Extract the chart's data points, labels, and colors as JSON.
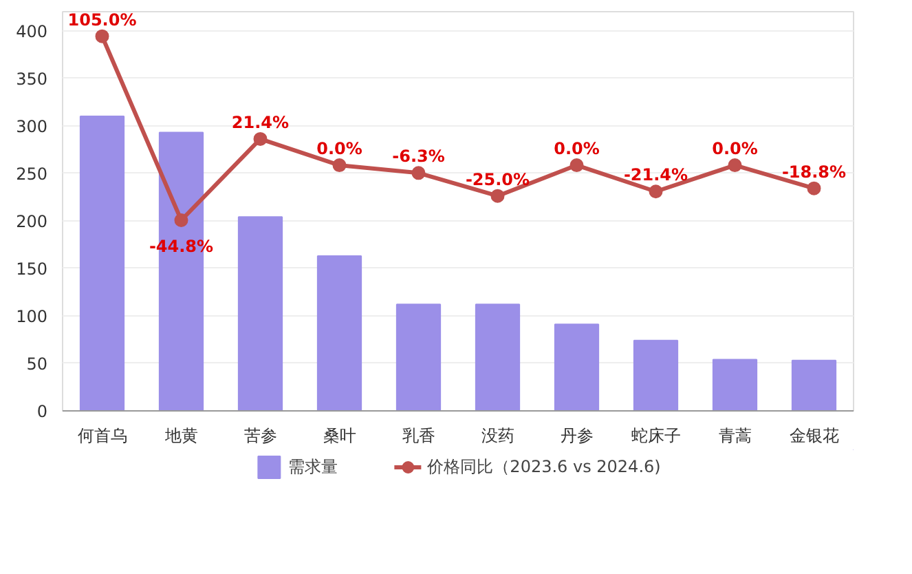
{
  "chart_data": {
    "type": "bar",
    "categories": [
      "何首乌",
      "地黄",
      "苦参",
      "桑叶",
      "乳香",
      "没药",
      "丹参",
      "蛇床子",
      "青蒿",
      "金银花"
    ],
    "series": [
      {
        "name": "需求量",
        "color": "#9b8fe8",
        "values": [
          310,
          293,
          204,
          163,
          112,
          112,
          91,
          74,
          54,
          53
        ]
      },
      {
        "name": "价格同比（2023.6 vs 2024.6)",
        "type": "line",
        "axis": "y2",
        "color": "#c0504d",
        "marker": "circle",
        "values": [
          105.0,
          -44.8,
          21.4,
          0.0,
          -6.3,
          -25.0,
          0.0,
          -21.4,
          0.0,
          -18.8
        ],
        "value_labels": [
          "105.0%",
          "-44.8%",
          "21.4%",
          "0.0%",
          "-6.3%",
          "-25.0%",
          "0.0%",
          "-21.4%",
          "0.0%",
          "-18.8%"
        ]
      }
    ],
    "ylim": [
      0,
      420
    ],
    "yticks": [
      0,
      50,
      100,
      150,
      200,
      250,
      300,
      350,
      400
    ],
    "y2lim": [
      -200,
      125
    ],
    "grid": "y",
    "legend": "bottom"
  }
}
